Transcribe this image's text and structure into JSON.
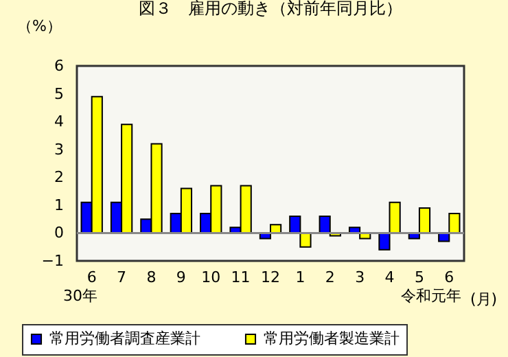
{
  "chart_data": {
    "type": "bar",
    "title": "図３　雇用の動き（対前年同月比）",
    "ylabel": "（%）",
    "xlabel": "(月)",
    "categories": [
      "6",
      "7",
      "8",
      "9",
      "10",
      "11",
      "12",
      "1",
      "2",
      "3",
      "4",
      "5",
      "6"
    ],
    "series": [
      {
        "name": "常用労働者調査産業計",
        "color": "#0000ff",
        "values": [
          1.1,
          1.1,
          0.5,
          0.7,
          0.7,
          0.2,
          -0.2,
          0.6,
          0.6,
          0.2,
          -0.6,
          -0.2,
          -0.3
        ]
      },
      {
        "name": "常用労働者製造業計",
        "color": "#ffff00",
        "values": [
          4.9,
          3.9,
          3.2,
          1.6,
          1.7,
          1.7,
          0.3,
          -0.5,
          -0.1,
          -0.2,
          1.1,
          0.9,
          0.7
        ]
      }
    ],
    "ylim": [
      -1,
      6
    ],
    "yticks": [
      -1,
      0,
      1,
      2,
      3,
      4,
      5,
      6
    ],
    "grid": false,
    "legend": "bottom",
    "ref_lines": [
      {
        "axis": "y",
        "value": 0,
        "color": "#888888"
      }
    ],
    "annotations": [
      "30年",
      "令和元年"
    ]
  }
}
